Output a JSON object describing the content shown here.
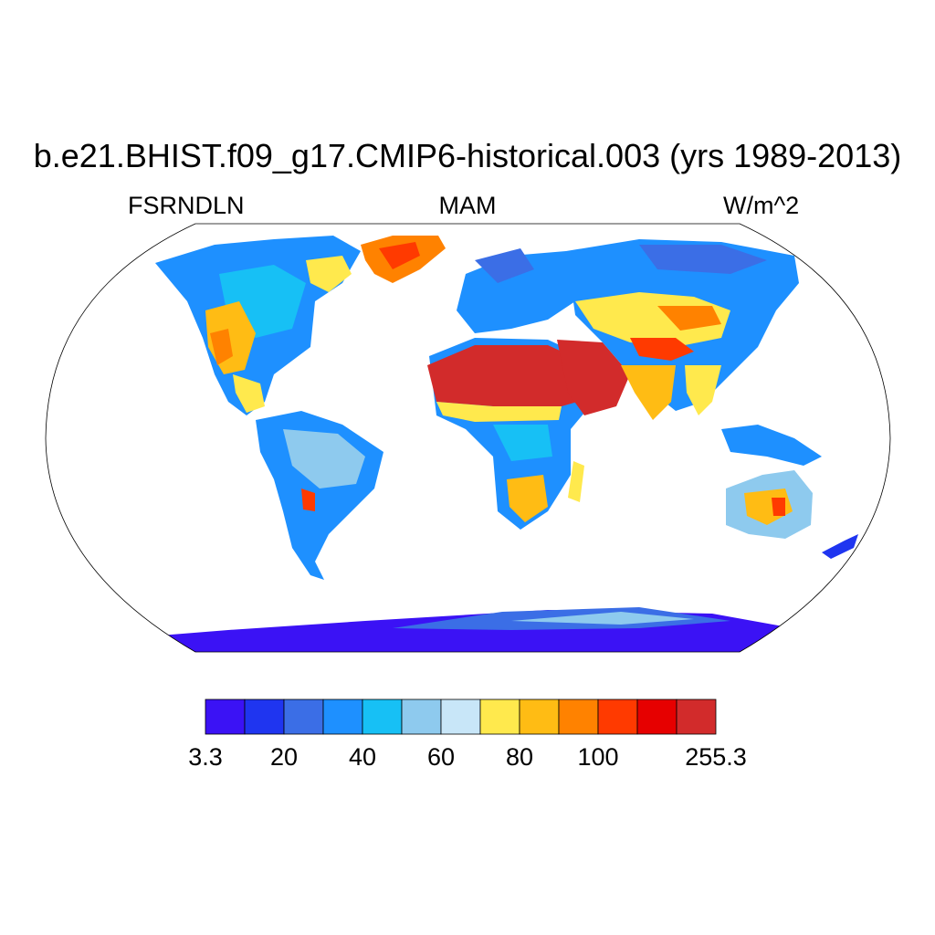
{
  "title": "b.e21.BHIST.f09_g17.CMIP6-historical.003 (yrs 1989-2013)",
  "subtitle_left": "FSRNDLN",
  "subtitle_center": "MAM",
  "subtitle_right": "W/m^2",
  "map": {
    "projection": "Robinson",
    "land_mask": "continents colored, ocean white",
    "regions": [
      {
        "name": "Sahara / Arabia",
        "level": "very high"
      },
      {
        "name": "Greenland",
        "level": "high"
      },
      {
        "name": "Tibet / Mongolia",
        "level": "high"
      },
      {
        "name": "Antarctica",
        "level": "very low"
      }
    ]
  },
  "colorbar": {
    "colors": [
      "#3b12f5",
      "#1f35f0",
      "#3b6ee6",
      "#1e90ff",
      "#17c0f5",
      "#8ecaee",
      "#c8e6f8",
      "#ffe94d",
      "#ffbc14",
      "#ff8200",
      "#ff3a00",
      "#e60000",
      "#d22b2b"
    ],
    "tick_labels": [
      "3.3",
      "20",
      "40",
      "60",
      "80",
      "100",
      "255.3"
    ]
  }
}
